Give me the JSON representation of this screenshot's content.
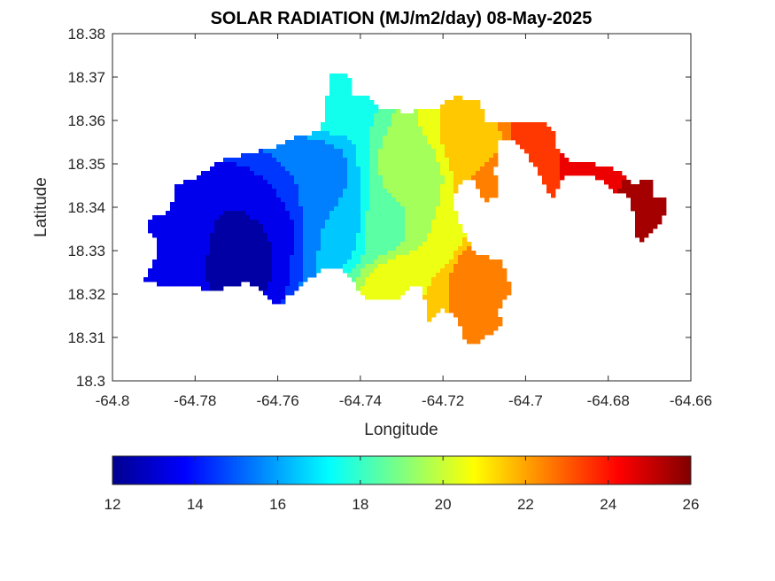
{
  "chart_data": {
    "type": "heatmap",
    "title": "SOLAR RADIATION (MJ/m2/day) 08-May-2025",
    "xlabel": "Longitude",
    "ylabel": "Latitude",
    "xlim": [
      -64.8,
      -64.66
    ],
    "ylim": [
      18.3,
      18.38
    ],
    "x_ticks": [
      "-64.8",
      "-64.78",
      "-64.76",
      "-64.74",
      "-64.72",
      "-64.7",
      "-64.68",
      "-64.66"
    ],
    "y_ticks": [
      "18.3",
      "18.31",
      "18.32",
      "18.33",
      "18.34",
      "18.35",
      "18.36",
      "18.37",
      "18.38"
    ],
    "grid": false,
    "colormap": "jet",
    "colorbar": {
      "orientation": "horizontal",
      "location": "bottom",
      "range": [
        12,
        26
      ],
      "ticks": [
        "12",
        "14",
        "16",
        "18",
        "20",
        "22",
        "24",
        "26"
      ]
    },
    "field_description_points": [
      {
        "lon": -64.77,
        "lat": 18.329,
        "value": 12.5
      },
      {
        "lon": -64.765,
        "lat": 18.336,
        "value": 13
      },
      {
        "lon": -64.785,
        "lat": 18.331,
        "value": 14
      },
      {
        "lon": -64.752,
        "lat": 18.347,
        "value": 15
      },
      {
        "lon": -64.745,
        "lat": 18.336,
        "value": 16
      },
      {
        "lon": -64.748,
        "lat": 18.365,
        "value": 17.5
      },
      {
        "lon": -64.735,
        "lat": 18.335,
        "value": 18.5
      },
      {
        "lon": -64.727,
        "lat": 18.348,
        "value": 19.5
      },
      {
        "lon": -64.722,
        "lat": 18.333,
        "value": 20
      },
      {
        "lon": -64.73,
        "lat": 18.322,
        "value": 21
      },
      {
        "lon": -64.713,
        "lat": 18.354,
        "value": 21.5
      },
      {
        "lon": -64.712,
        "lat": 18.325,
        "value": 22.5
      },
      {
        "lon": -64.707,
        "lat": 18.32,
        "value": 23
      },
      {
        "lon": -64.706,
        "lat": 18.345,
        "value": 23
      },
      {
        "lon": -64.695,
        "lat": 18.358,
        "value": 24
      },
      {
        "lon": -64.68,
        "lat": 18.349,
        "value": 24.5
      },
      {
        "lon": -64.672,
        "lat": 18.344,
        "value": 25.5
      },
      {
        "lon": -64.669,
        "lat": 18.339,
        "value": 26
      }
    ]
  },
  "colors": {
    "axis": "#262626",
    "background": "#ffffff"
  }
}
